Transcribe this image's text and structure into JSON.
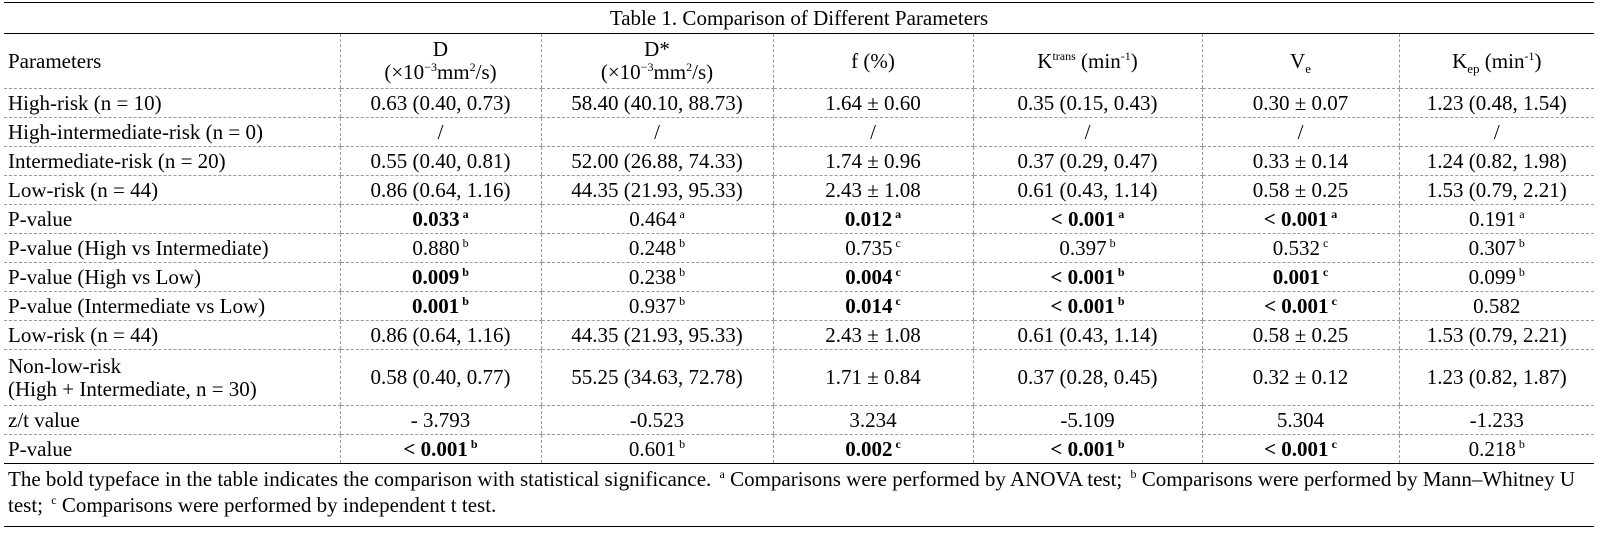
{
  "caption": "Table 1. Comparison of Different Parameters",
  "header": {
    "parameters": "Parameters",
    "d": {
      "name": "D",
      "unit_open": "(×10",
      "exp": "−3",
      "unit_mid": "mm",
      "unit_sup": "2",
      "unit_close": "/s)"
    },
    "dstar": {
      "name": "D*",
      "unit_open": "(×10",
      "exp": "−3",
      "unit_mid": "mm",
      "unit_sup": "2",
      "unit_close": "/s)"
    },
    "f": "f (%)",
    "ktrans": {
      "base": "K",
      "sup": "trans",
      "unit": " (min",
      "unit_sup": "-1",
      "unit_close": ")"
    },
    "ve": {
      "base": "V",
      "sub": "e"
    },
    "kep": {
      "base": "K",
      "sub": "ep",
      "unit": " (min",
      "unit_sup": "-1",
      "unit_close": ")"
    }
  },
  "rows": [
    {
      "label": "High-risk (n = 10)",
      "cells": [
        {
          "v": "0.63 (0.40, 0.73)"
        },
        {
          "v": "58.40 (40.10, 88.73)"
        },
        {
          "v": "1.64 ± 0.60"
        },
        {
          "v": "0.35 (0.15, 0.43)"
        },
        {
          "v": "0.30 ± 0.07"
        },
        {
          "v": "1.23 (0.48, 1.54)"
        }
      ]
    },
    {
      "label": "High-intermediate-risk (n = 0)",
      "cells": [
        {
          "v": "/"
        },
        {
          "v": "/"
        },
        {
          "v": "/"
        },
        {
          "v": "/"
        },
        {
          "v": "/"
        },
        {
          "v": "/"
        }
      ]
    },
    {
      "label": "Intermediate-risk (n = 20)",
      "cells": [
        {
          "v": "0.55 (0.40, 0.81)"
        },
        {
          "v": "52.00 (26.88, 74.33)"
        },
        {
          "v": "1.74 ± 0.96"
        },
        {
          "v": "0.37 (0.29, 0.47)"
        },
        {
          "v": "0.33 ± 0.14"
        },
        {
          "v": "1.24 (0.82, 1.98)"
        }
      ]
    },
    {
      "label": "Low-risk (n = 44)",
      "cells": [
        {
          "v": "0.86 (0.64, 1.16)"
        },
        {
          "v": "44.35 (21.93, 95.33)"
        },
        {
          "v": "2.43 ± 1.08"
        },
        {
          "v": "0.61 (0.43, 1.14)"
        },
        {
          "v": "0.58 ± 0.25"
        },
        {
          "v": "1.53 (0.79, 2.21)"
        }
      ]
    },
    {
      "label": "P-value",
      "cells": [
        {
          "v": "0.033",
          "m": "a",
          "b": true
        },
        {
          "v": "0.464",
          "m": "a"
        },
        {
          "v": "0.012",
          "m": "a",
          "b": true
        },
        {
          "v": "< 0.001",
          "m": "a",
          "b": true
        },
        {
          "v": "< 0.001",
          "m": "a",
          "b": true
        },
        {
          "v": "0.191",
          "m": "a"
        }
      ]
    },
    {
      "label": "P-value (High vs Intermediate)",
      "cells": [
        {
          "v": "0.880",
          "m": "b"
        },
        {
          "v": "0.248",
          "m": "b"
        },
        {
          "v": "0.735",
          "m": "c"
        },
        {
          "v": "0.397",
          "m": "b"
        },
        {
          "v": "0.532",
          "m": "c"
        },
        {
          "v": "0.307",
          "m": "b"
        }
      ]
    },
    {
      "label": "P-value (High vs Low)",
      "cells": [
        {
          "v": "0.009",
          "m": "b",
          "b": true
        },
        {
          "v": "0.238",
          "m": "b"
        },
        {
          "v": "0.004",
          "m": "c",
          "b": true
        },
        {
          "v": "< 0.001",
          "m": "b",
          "b": true
        },
        {
          "v": "0.001",
          "m": "c",
          "b": true
        },
        {
          "v": "0.099",
          "m": "b"
        }
      ]
    },
    {
      "label": "P-value (Intermediate vs Low)",
      "cells": [
        {
          "v": "0.001",
          "m": "b",
          "b": true
        },
        {
          "v": "0.937",
          "m": "b"
        },
        {
          "v": "0.014",
          "m": "c",
          "b": true
        },
        {
          "v": "< 0.001",
          "m": "b",
          "b": true
        },
        {
          "v": "< 0.001",
          "m": "c",
          "b": true
        },
        {
          "v": "0.582"
        }
      ]
    },
    {
      "label": "Low-risk (n = 44)",
      "cells": [
        {
          "v": "0.86 (0.64, 1.16)"
        },
        {
          "v": "44.35 (21.93, 95.33)"
        },
        {
          "v": "2.43 ± 1.08"
        },
        {
          "v": "0.61 (0.43, 1.14)"
        },
        {
          "v": "0.58 ± 0.25"
        },
        {
          "v": "1.53 (0.79, 2.21)"
        }
      ]
    },
    {
      "label": "Non-low-risk",
      "label2": "(High + Intermediate, n = 30)",
      "tall": true,
      "cells": [
        {
          "v": "0.58 (0.40, 0.77)"
        },
        {
          "v": "55.25 (34.63, 72.78)"
        },
        {
          "v": "1.71 ± 0.84"
        },
        {
          "v": "0.37 (0.28, 0.45)"
        },
        {
          "v": "0.32 ± 0.12"
        },
        {
          "v": "1.23 (0.82, 1.87)"
        }
      ]
    },
    {
      "label": "z/t value",
      "cells": [
        {
          "v": "- 3.793"
        },
        {
          "v": "-0.523"
        },
        {
          "v": "3.234"
        },
        {
          "v": "-5.109"
        },
        {
          "v": "5.304"
        },
        {
          "v": "-1.233"
        }
      ]
    },
    {
      "label": "P-value",
      "last": true,
      "cells": [
        {
          "v": "< 0.001",
          "m": "b",
          "b": true
        },
        {
          "v": "0.601",
          "m": "b"
        },
        {
          "v": "0.002",
          "m": "c",
          "b": true
        },
        {
          "v": "< 0.001",
          "m": "b",
          "b": true
        },
        {
          "v": "< 0.001",
          "m": "c",
          "b": true
        },
        {
          "v": "0.218",
          "m": "b"
        }
      ]
    }
  ],
  "note": {
    "part1": "The bold typeface in the table indicates the comparison with statistical significance. ",
    "a_mark": "a",
    "part2": " Comparisons were performed by ANOVA test; ",
    "b_mark": "b",
    "part3": " Comparisons were performed by Mann–Whitney U test; ",
    "c_mark": "c",
    "part4": " Comparisons were performed by independent t test."
  }
}
